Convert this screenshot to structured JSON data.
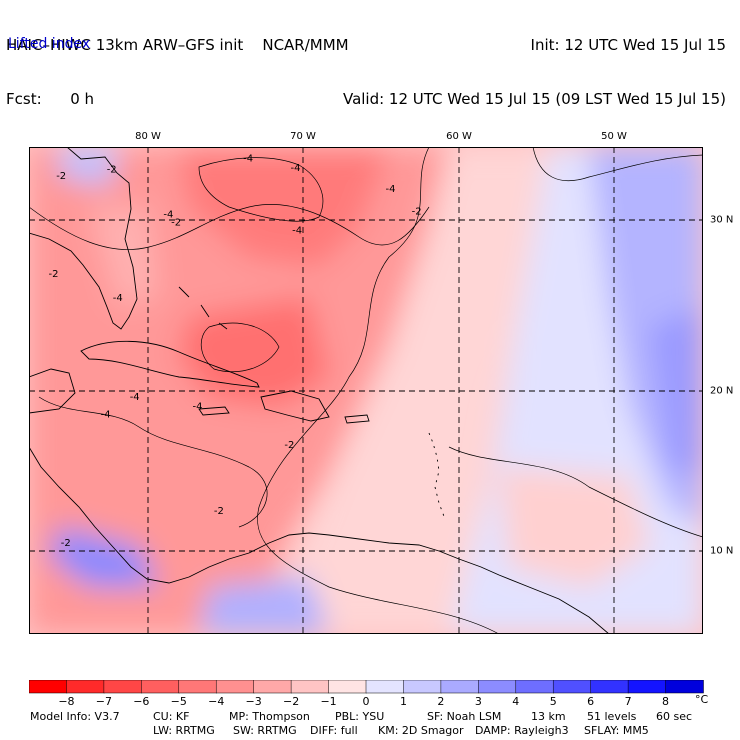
{
  "header": {
    "model_line": "HAIC–HIWC 13km ARW–GFS init    NCAR/MMM",
    "fcst_label": "Fcst:",
    "fcst_value": "0 h",
    "init_line": "Init: 12 UTC Wed 15 Jul 15",
    "valid_line": "Valid: 12 UTC Wed 15 Jul 15 (09 LST Wed 15 Jul 15)"
  },
  "field_name": "Lifted index",
  "map": {
    "lon_labels": [
      "80 W",
      "70 W",
      "60 W",
      "50 W"
    ],
    "lon_values": [
      -80,
      -70,
      -60,
      -50
    ],
    "lat_labels": [
      "30 N",
      "20 N",
      "10 N"
    ],
    "lat_values": [
      30,
      20,
      10
    ],
    "extent": {
      "lon_min": -87.6,
      "lon_max": -43.6,
      "lat_min": 3.8,
      "lat_max": 34.2
    },
    "contour_labels": [
      {
        "text": "-2",
        "lon": -85.5,
        "lat": 32.2
      },
      {
        "text": "-2",
        "lon": -82.2,
        "lat": 32.6
      },
      {
        "text": "-4",
        "lon": -73.3,
        "lat": 33.3
      },
      {
        "text": "-4",
        "lon": -70.2,
        "lat": 32.7
      },
      {
        "text": "-4",
        "lon": -64.0,
        "lat": 31.4
      },
      {
        "text": "-4",
        "lon": -78.5,
        "lat": 29.8
      },
      {
        "text": "-2",
        "lon": -78.0,
        "lat": 29.3
      },
      {
        "text": "-4",
        "lon": -70.1,
        "lat": 28.8
      },
      {
        "text": "-2",
        "lon": -62.3,
        "lat": 30.0
      },
      {
        "text": "-2",
        "lon": -86.0,
        "lat": 26.1
      },
      {
        "text": "-4",
        "lon": -81.8,
        "lat": 24.6
      },
      {
        "text": "-4",
        "lon": -80.7,
        "lat": 18.4
      },
      {
        "text": "-4",
        "lon": -82.6,
        "lat": 17.3
      },
      {
        "text": "-4",
        "lon": -76.6,
        "lat": 17.8
      },
      {
        "text": "-2",
        "lon": -70.6,
        "lat": 15.4
      },
      {
        "text": "-2",
        "lon": -75.2,
        "lat": 11.3
      },
      {
        "text": "-2",
        "lon": -85.2,
        "lat": 9.3
      }
    ],
    "contour_label_color": "#000000"
  },
  "legend": {
    "labels": [
      "−8",
      "−7",
      "−6",
      "−5",
      "−4",
      "−3",
      "−2",
      "−1",
      "0",
      "1",
      "2",
      "3",
      "4",
      "5",
      "6",
      "7",
      "8"
    ],
    "unit": "°C",
    "colors": [
      "#ff0000",
      "#ff2a2a",
      "#ff4646",
      "#ff5f5f",
      "#ff7777",
      "#ff9090",
      "#ffa8a8",
      "#ffc4c4",
      "#ffe4e4",
      "#e4e4ff",
      "#c8c8ff",
      "#aaaaff",
      "#8c8cff",
      "#6e6eff",
      "#5050ff",
      "#3232ff",
      "#1414ff",
      "#0000dd"
    ]
  },
  "model_info": {
    "row1": [
      {
        "label": "Model Info: V3.7"
      },
      {
        "label": "CU: KF"
      },
      {
        "label": "MP: Thompson"
      },
      {
        "label": "PBL: YSU"
      },
      {
        "label": "SF: Noah LSM"
      },
      {
        "label": "13 km"
      },
      {
        "label": "51 levels"
      },
      {
        "label": "60 sec"
      }
    ],
    "row2": [
      {
        "label": "LW: RRTMG"
      },
      {
        "label": "SW: RRTMG"
      },
      {
        "label": "DIFF: full"
      },
      {
        "label": "KM: 2D Smagor"
      },
      {
        "label": "DAMP: Rayleigh3"
      },
      {
        "label": "SFLAY: MM5"
      }
    ]
  }
}
